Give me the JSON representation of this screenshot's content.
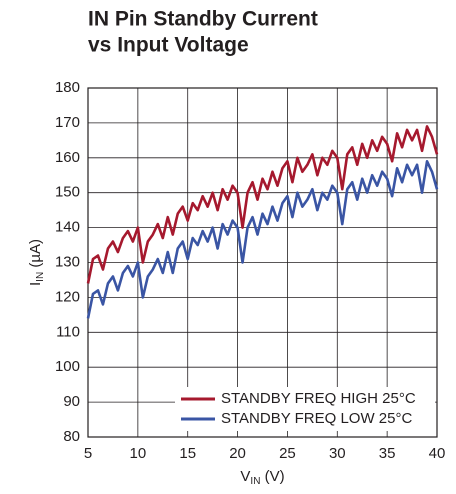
{
  "chart_data": {
    "type": "line",
    "title": [
      "IN Pin Standby Current",
      "vs Input Voltage"
    ],
    "ylabel": {
      "main": "I",
      "sub": "IN",
      "unit": " (µA)"
    },
    "xlabel": {
      "main": "V",
      "sub": "IN",
      "unit": " (V)"
    },
    "x": [
      5,
      5.5,
      6,
      6.5,
      7,
      7.5,
      8,
      8.5,
      9,
      9.5,
      10,
      10.5,
      11,
      11.5,
      12,
      12.5,
      13,
      13.5,
      14,
      14.5,
      15,
      15.5,
      16,
      16.5,
      17,
      17.5,
      18,
      18.5,
      19,
      19.5,
      20,
      20.5,
      21,
      21.5,
      22,
      22.5,
      23,
      23.5,
      24,
      24.5,
      25,
      25.5,
      26,
      26.5,
      27,
      27.5,
      28,
      28.5,
      29,
      29.5,
      30,
      30.5,
      31,
      31.5,
      32,
      32.5,
      33,
      33.5,
      34,
      34.5,
      35,
      35.5,
      36,
      36.5,
      37,
      37.5,
      38,
      38.5,
      39,
      39.5,
      40
    ],
    "series": [
      {
        "name": "STANDBY FREQ HIGH 25°C",
        "color": "#a6192e",
        "values": [
          124,
          131,
          132,
          128,
          134,
          136,
          133,
          137,
          139,
          136,
          140,
          130,
          136,
          138,
          141,
          137,
          143,
          138,
          144,
          146,
          142,
          147,
          145,
          149,
          146,
          150,
          145,
          151,
          148,
          152,
          150,
          140,
          150,
          153,
          148,
          154,
          151,
          156,
          152,
          157,
          159,
          153,
          160,
          156,
          158,
          161,
          155,
          160,
          158,
          162,
          160,
          151,
          161,
          163,
          158,
          164,
          160,
          165,
          162,
          166,
          164,
          159,
          167,
          163,
          168,
          165,
          168,
          162,
          169,
          166,
          161
        ]
      },
      {
        "name": "STANDBY FREQ LOW 25°C",
        "color": "#3a55a4",
        "values": [
          114,
          121,
          122,
          118,
          124,
          126,
          122,
          127,
          129,
          126,
          130,
          120,
          126,
          128,
          131,
          127,
          133,
          127,
          134,
          136,
          131,
          137,
          135,
          139,
          136,
          140,
          134,
          141,
          138,
          142,
          140,
          130,
          140,
          143,
          138,
          144,
          141,
          146,
          142,
          147,
          149,
          143,
          150,
          146,
          148,
          151,
          145,
          150,
          148,
          152,
          150,
          141,
          151,
          153,
          148,
          154,
          150,
          155,
          152,
          156,
          154,
          149,
          157,
          153,
          158,
          155,
          158,
          150,
          159,
          156,
          151
        ]
      }
    ],
    "xlim": [
      5,
      40
    ],
    "xticks": [
      5,
      10,
      15,
      20,
      25,
      30,
      35,
      40
    ],
    "ylim": [
      80,
      180
    ],
    "yticks": [
      80,
      90,
      100,
      110,
      120,
      130,
      140,
      150,
      160,
      170,
      180
    ],
    "grid": true,
    "legend": "lower right"
  }
}
